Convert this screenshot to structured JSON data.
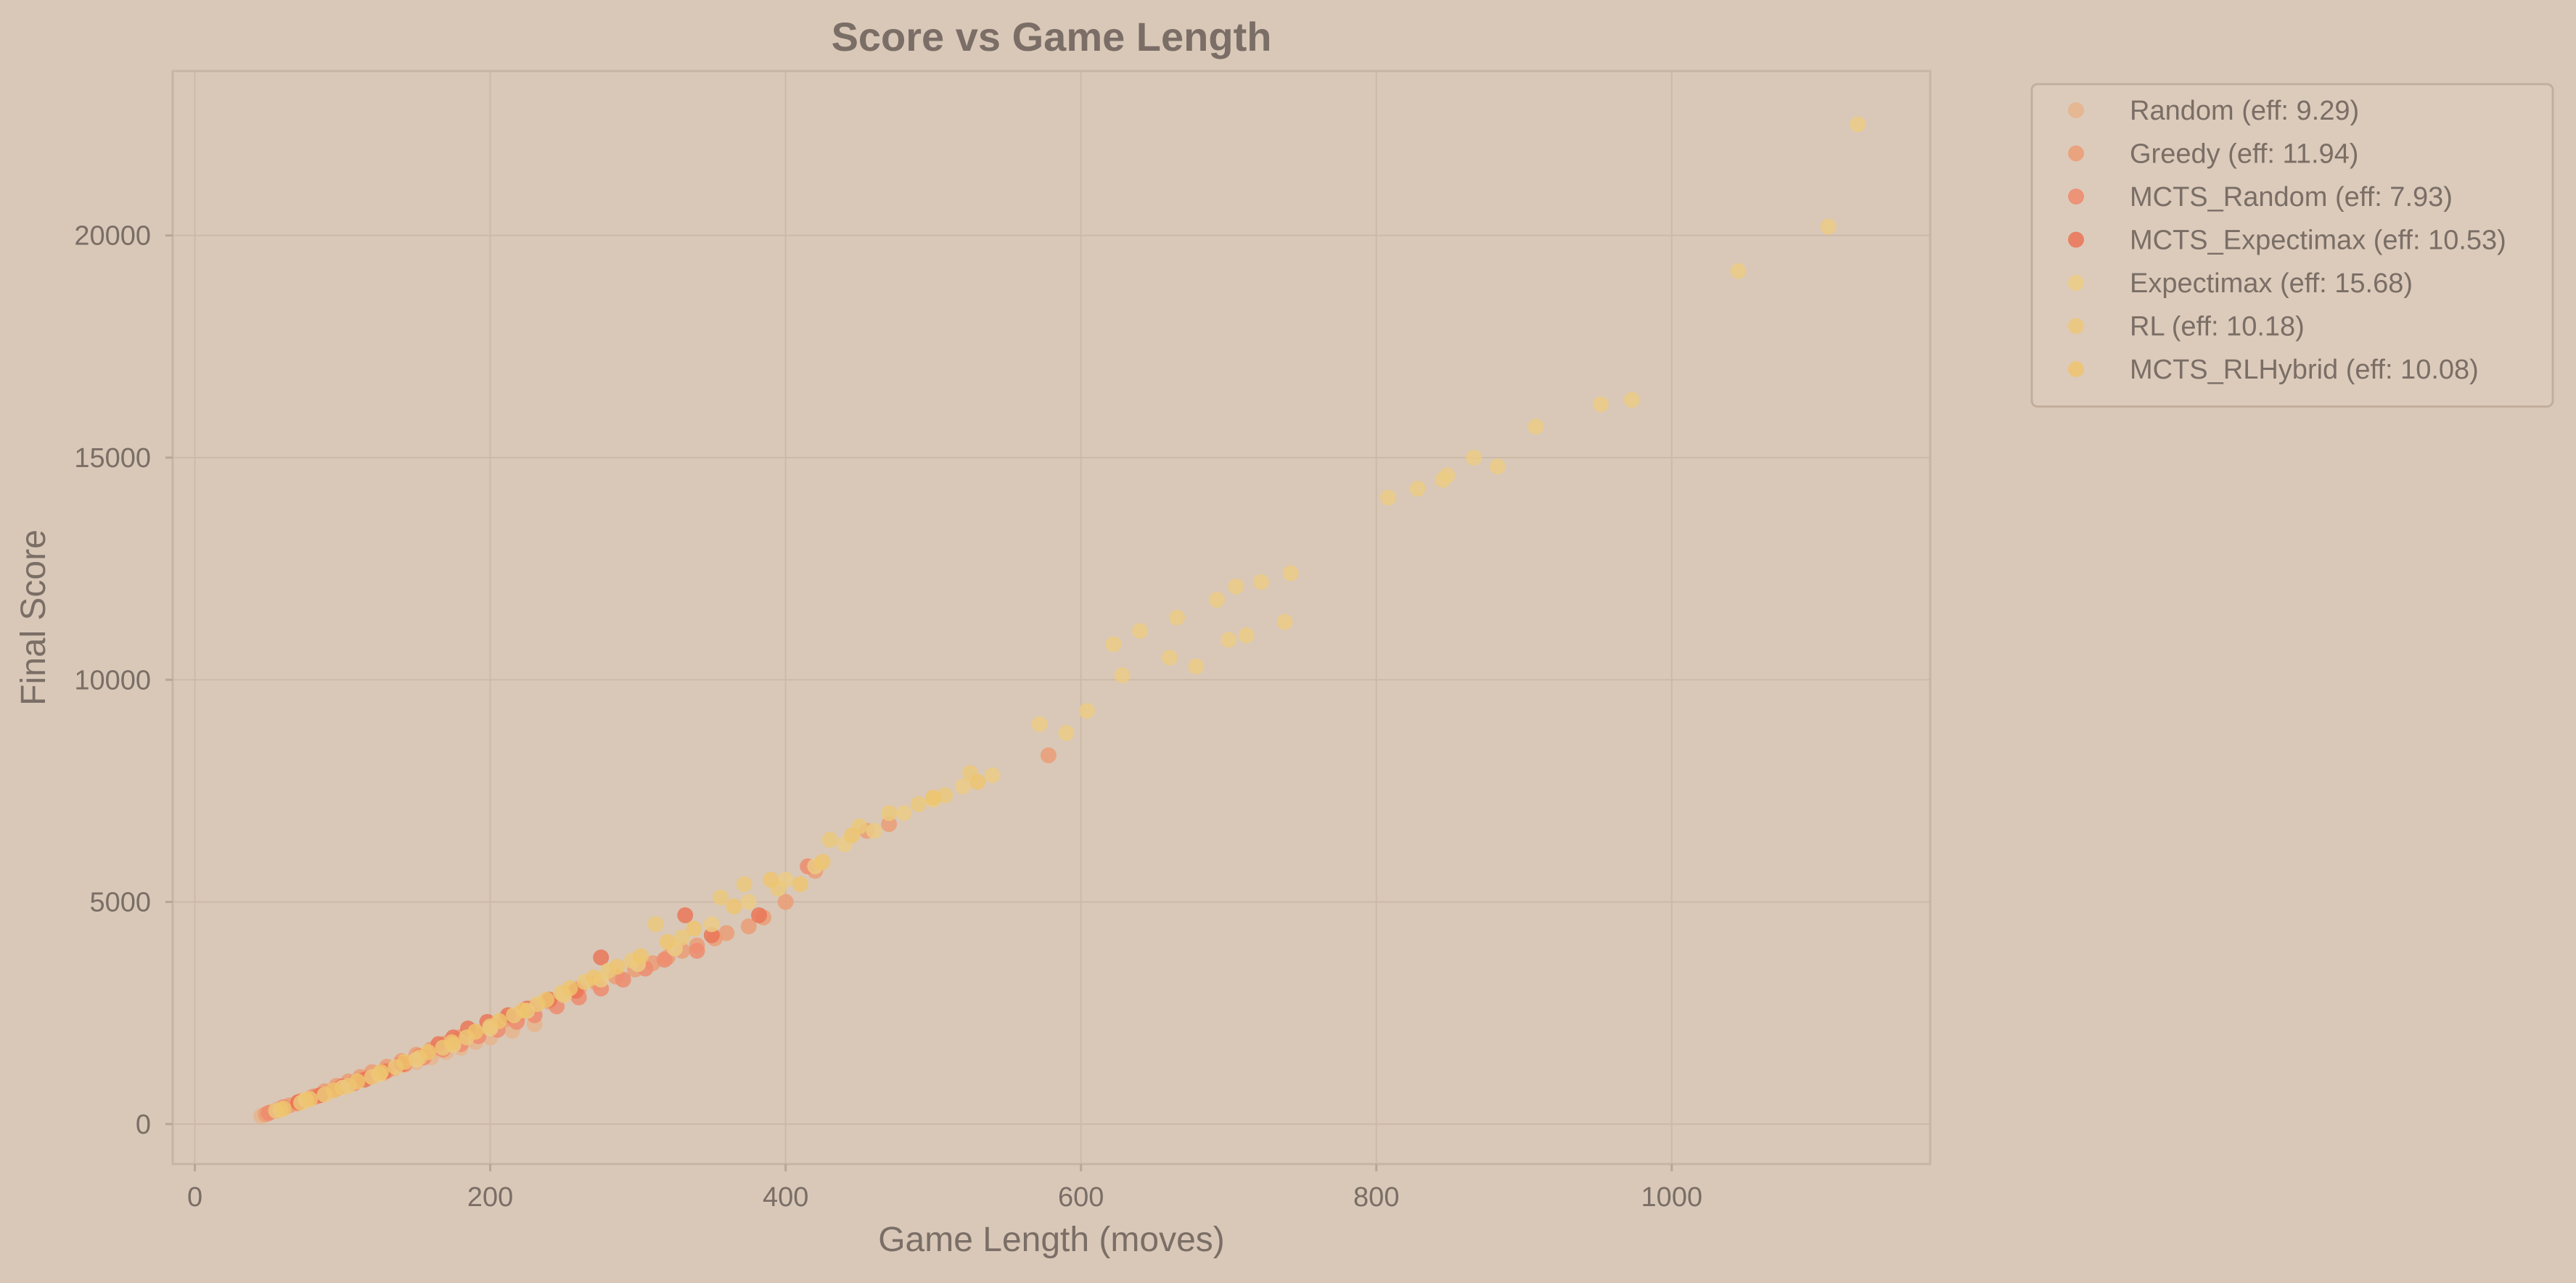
{
  "chart_data": {
    "type": "scatter",
    "title": "Score vs Game Length",
    "xlabel": "Game Length (moves)",
    "ylabel": "Final Score",
    "xlim": [
      -15,
      1175
    ],
    "ylim": [
      -900,
      23700
    ],
    "xticks": [
      0,
      200,
      400,
      600,
      800,
      1000
    ],
    "yticks": [
      0,
      5000,
      10000,
      15000,
      20000
    ],
    "grid": true,
    "legend_position": "outside-top-right",
    "series": [
      {
        "name": "Random (eff: 9.29)",
        "color": "#e8b48c",
        "points": [
          [
            45,
            180
          ],
          [
            52,
            280
          ],
          [
            60,
            360
          ],
          [
            68,
            450
          ],
          [
            75,
            560
          ],
          [
            83,
            640
          ],
          [
            90,
            720
          ],
          [
            98,
            830
          ],
          [
            105,
            900
          ],
          [
            112,
            1000
          ],
          [
            120,
            1080
          ],
          [
            128,
            1150
          ],
          [
            135,
            1250
          ],
          [
            142,
            1330
          ],
          [
            150,
            1400
          ],
          [
            160,
            1500
          ],
          [
            170,
            1620
          ],
          [
            180,
            1720
          ],
          [
            190,
            1850
          ],
          [
            200,
            1950
          ],
          [
            215,
            2100
          ],
          [
            230,
            2250
          ]
        ]
      },
      {
        "name": "Greedy (eff: 11.94)",
        "color": "#ec9c74",
        "points": [
          [
            48,
            220
          ],
          [
            56,
            320
          ],
          [
            64,
            420
          ],
          [
            72,
            520
          ],
          [
            80,
            620
          ],
          [
            88,
            740
          ],
          [
            96,
            860
          ],
          [
            104,
            960
          ],
          [
            112,
            1060
          ],
          [
            120,
            1170
          ],
          [
            130,
            1290
          ],
          [
            140,
            1420
          ],
          [
            150,
            1560
          ],
          [
            160,
            1680
          ],
          [
            170,
            1820
          ],
          [
            180,
            1960
          ],
          [
            190,
            2080
          ],
          [
            200,
            2220
          ],
          [
            210,
            2360
          ],
          [
            220,
            2480
          ],
          [
            230,
            2640
          ],
          [
            240,
            2760
          ],
          [
            250,
            2920
          ],
          [
            260,
            3050
          ],
          [
            272,
            3180
          ],
          [
            285,
            3320
          ],
          [
            298,
            3480
          ],
          [
            310,
            3620
          ],
          [
            320,
            3750
          ],
          [
            330,
            3900
          ],
          [
            340,
            4020
          ],
          [
            352,
            4180
          ],
          [
            360,
            4300
          ],
          [
            375,
            4450
          ],
          [
            385,
            4650
          ],
          [
            400,
            5000
          ],
          [
            420,
            5700
          ],
          [
            455,
            6600
          ],
          [
            470,
            6750
          ],
          [
            578,
            8300
          ]
        ]
      },
      {
        "name": "MCTS_Random (eff: 7.93)",
        "color": "#ee8a6c",
        "points": [
          [
            50,
            250
          ],
          [
            60,
            380
          ],
          [
            70,
            500
          ],
          [
            82,
            620
          ],
          [
            95,
            780
          ],
          [
            108,
            920
          ],
          [
            118,
            1050
          ],
          [
            130,
            1200
          ],
          [
            142,
            1350
          ],
          [
            155,
            1500
          ],
          [
            168,
            1680
          ],
          [
            180,
            1800
          ],
          [
            192,
            1980
          ],
          [
            205,
            2120
          ],
          [
            218,
            2300
          ],
          [
            230,
            2450
          ],
          [
            245,
            2650
          ],
          [
            260,
            2850
          ],
          [
            275,
            3050
          ],
          [
            290,
            3250
          ],
          [
            305,
            3500
          ],
          [
            318,
            3700
          ],
          [
            340,
            3900
          ],
          [
            415,
            5800
          ]
        ]
      },
      {
        "name": "MCTS_Expectimax (eff: 10.53)",
        "color": "#ea7456",
        "points": [
          [
            55,
            300
          ],
          [
            70,
            480
          ],
          [
            85,
            650
          ],
          [
            100,
            850
          ],
          [
            115,
            1000
          ],
          [
            128,
            1180
          ],
          [
            140,
            1350
          ],
          [
            152,
            1520
          ],
          [
            165,
            1800
          ],
          [
            175,
            1950
          ],
          [
            185,
            2150
          ],
          [
            198,
            2300
          ],
          [
            212,
            2450
          ],
          [
            225,
            2600
          ],
          [
            240,
            2800
          ],
          [
            258,
            3000
          ],
          [
            275,
            3750
          ],
          [
            332,
            4700
          ],
          [
            350,
            4250
          ],
          [
            382,
            4700
          ]
        ]
      },
      {
        "name": "Expectimax (eff: 15.68)",
        "color": "#eccc84",
        "points": [
          [
            55,
            300
          ],
          [
            75,
            550
          ],
          [
            100,
            820
          ],
          [
            125,
            1120
          ],
          [
            150,
            1450
          ],
          [
            175,
            1780
          ],
          [
            200,
            2150
          ],
          [
            225,
            2550
          ],
          [
            250,
            2900
          ],
          [
            275,
            3250
          ],
          [
            300,
            3600
          ],
          [
            325,
            3950
          ],
          [
            350,
            4500
          ],
          [
            375,
            5000
          ],
          [
            400,
            5500
          ],
          [
            420,
            5800
          ],
          [
            440,
            6300
          ],
          [
            460,
            6600
          ],
          [
            480,
            7000
          ],
          [
            500,
            7300
          ],
          [
            520,
            7600
          ],
          [
            540,
            7850
          ],
          [
            572,
            9000
          ],
          [
            590,
            8800
          ],
          [
            604,
            9300
          ],
          [
            622,
            10800
          ],
          [
            628,
            10100
          ],
          [
            640,
            11100
          ],
          [
            660,
            10500
          ],
          [
            665,
            11400
          ],
          [
            678,
            10300
          ],
          [
            692,
            11800
          ],
          [
            700,
            10900
          ],
          [
            705,
            12100
          ],
          [
            712,
            11000
          ],
          [
            722,
            12200
          ],
          [
            738,
            11300
          ],
          [
            742,
            12400
          ],
          [
            808,
            14100
          ],
          [
            828,
            14300
          ],
          [
            845,
            14500
          ],
          [
            848,
            14600
          ],
          [
            866,
            15000
          ],
          [
            882,
            14800
          ],
          [
            908,
            15700
          ],
          [
            952,
            16200
          ],
          [
            973,
            16300
          ],
          [
            1045,
            19200
          ],
          [
            1106,
            20200
          ],
          [
            1126,
            22500
          ]
        ]
      },
      {
        "name": "RL (eff: 10.18)",
        "color": "#ecc87a",
        "points": [
          [
            58,
            320
          ],
          [
            72,
            480
          ],
          [
            88,
            660
          ],
          [
            104,
            860
          ],
          [
            120,
            1060
          ],
          [
            136,
            1280
          ],
          [
            152,
            1500
          ],
          [
            168,
            1720
          ],
          [
            184,
            1950
          ],
          [
            200,
            2200
          ],
          [
            216,
            2450
          ],
          [
            232,
            2700
          ],
          [
            248,
            2950
          ],
          [
            264,
            3200
          ],
          [
            280,
            3450
          ],
          [
            296,
            3680
          ],
          [
            312,
            4500
          ],
          [
            330,
            4200
          ],
          [
            356,
            5100
          ],
          [
            372,
            5400
          ],
          [
            395,
            5300
          ],
          [
            430,
            6400
          ],
          [
            450,
            6700
          ],
          [
            470,
            7000
          ],
          [
            490,
            7200
          ],
          [
            508,
            7400
          ],
          [
            525,
            7900
          ]
        ]
      },
      {
        "name": "MCTS_RLHybrid (eff: 10.08)",
        "color": "#eec46e",
        "points": [
          [
            60,
            350
          ],
          [
            78,
            560
          ],
          [
            94,
            760
          ],
          [
            110,
            960
          ],
          [
            126,
            1170
          ],
          [
            142,
            1400
          ],
          [
            158,
            1620
          ],
          [
            174,
            1840
          ],
          [
            190,
            2080
          ],
          [
            206,
            2320
          ],
          [
            222,
            2560
          ],
          [
            238,
            2800
          ],
          [
            254,
            3060
          ],
          [
            270,
            3300
          ],
          [
            286,
            3540
          ],
          [
            302,
            3780
          ],
          [
            320,
            4100
          ],
          [
            338,
            4400
          ],
          [
            365,
            4900
          ],
          [
            390,
            5500
          ],
          [
            410,
            5400
          ],
          [
            425,
            5900
          ],
          [
            445,
            6500
          ],
          [
            500,
            7350
          ],
          [
            530,
            7700
          ]
        ]
      }
    ]
  }
}
